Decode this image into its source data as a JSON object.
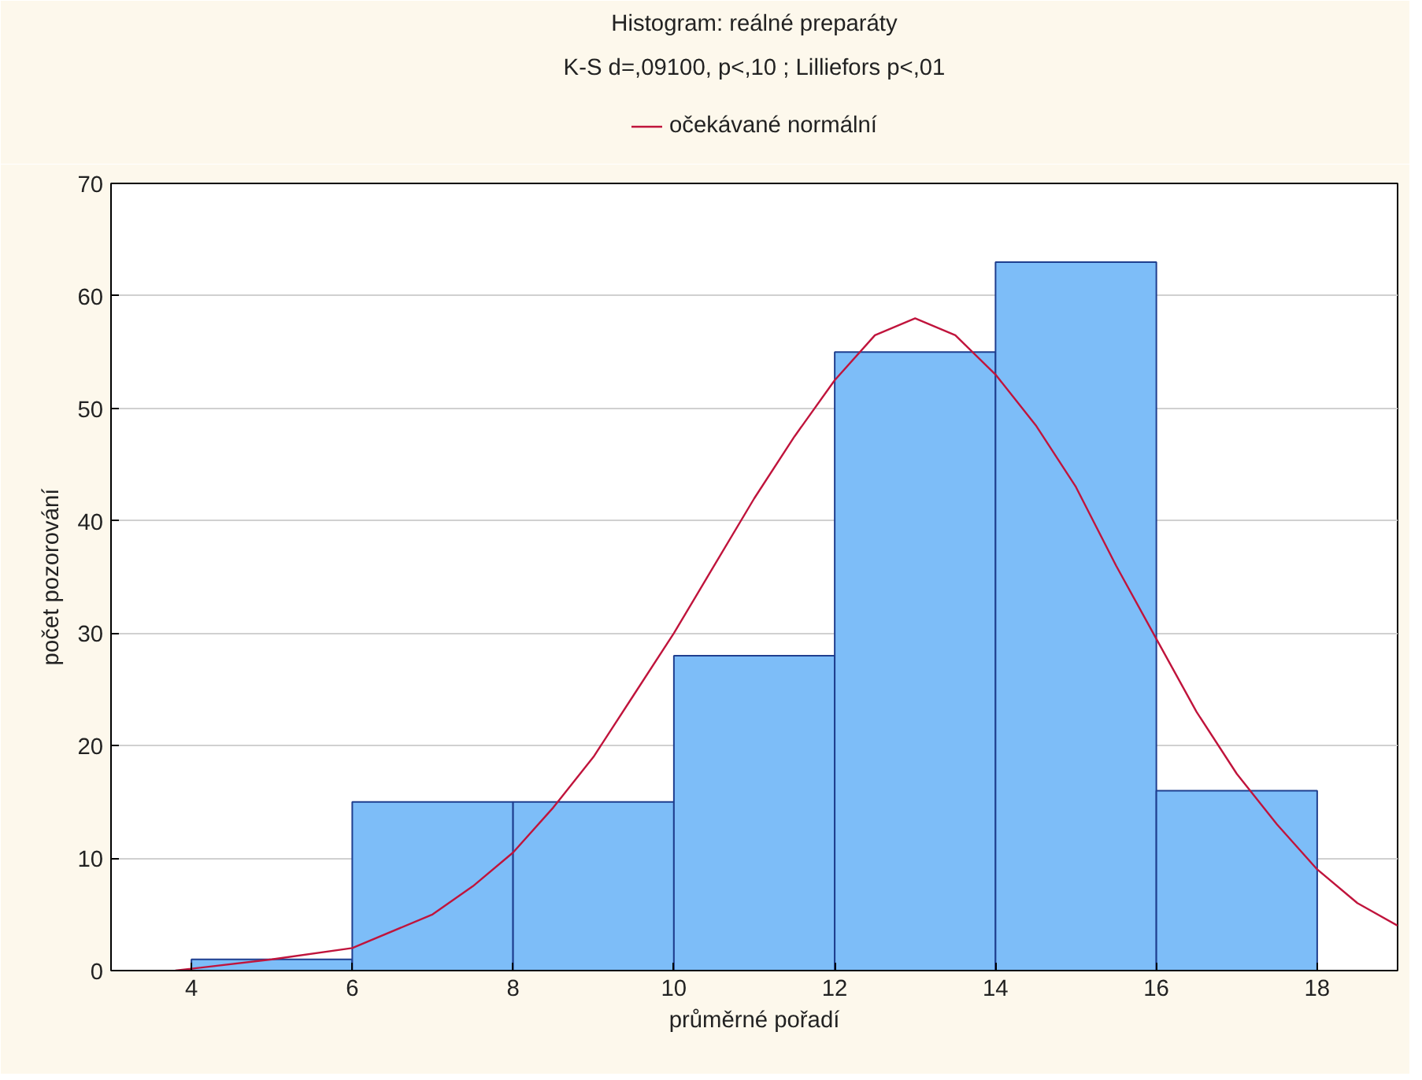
{
  "chart_data": {
    "type": "histogram",
    "title": "Histogram: reálné preparáty",
    "subtitle": "K-S d=,09100, p<,10 ; Lilliefors p<,01",
    "xlabel": "průměrné pořadí",
    "ylabel": "počet pozorování",
    "bins": [
      4,
      6,
      8,
      10,
      12,
      14,
      16,
      18
    ],
    "values": [
      1,
      15,
      15,
      28,
      55,
      63,
      16
    ],
    "color": "#7dbdf8",
    "series": [
      {
        "type": "line",
        "name": "očekávané normální",
        "color": "#c0143c",
        "x": [
          3.8,
          5,
          6,
          7,
          7.5,
          8,
          8.5,
          9,
          9.5,
          10,
          10.5,
          11,
          11.5,
          12,
          12.5,
          13,
          13.5,
          14,
          14.5,
          15,
          15.5,
          16,
          16.5,
          17,
          17.5,
          18,
          18.5,
          19
        ],
        "values": [
          0,
          1,
          2,
          5,
          7.5,
          10.5,
          14.5,
          19,
          24.5,
          30,
          36,
          42,
          47.5,
          52.5,
          56.5,
          58,
          56.5,
          53,
          48.5,
          43,
          36,
          29.5,
          23,
          17.5,
          13,
          9,
          6,
          4
        ]
      }
    ],
    "xlim": [
      3,
      19
    ],
    "ylim": [
      0,
      70
    ],
    "xticks": [
      4,
      6,
      8,
      10,
      12,
      14,
      16,
      18
    ],
    "yticks": [
      0,
      10,
      20,
      30,
      40,
      50,
      60,
      70
    ],
    "grid": "y",
    "legend": "top"
  }
}
